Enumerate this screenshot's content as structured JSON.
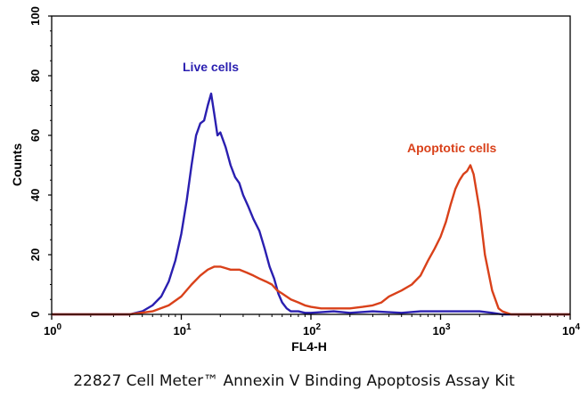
{
  "caption": "22827 Cell Meter™ Annexin V Binding Apoptosis Assay Kit",
  "colors": {
    "live": "#2a1fb0",
    "apoptotic": "#d9411a",
    "axis": "#000000"
  },
  "chart_data": {
    "type": "line",
    "xlabel": "FL4-H",
    "ylabel": "Counts",
    "xscale": "log",
    "xlim": [
      1,
      10000
    ],
    "ylim": [
      0,
      100
    ],
    "x_ticks": [
      {
        "base": "10",
        "exp": "0"
      },
      {
        "base": "10",
        "exp": "1"
      },
      {
        "base": "10",
        "exp": "2"
      },
      {
        "base": "10",
        "exp": "3"
      },
      {
        "base": "10",
        "exp": "4"
      }
    ],
    "y_ticks": [
      "0",
      "20",
      "40",
      "60",
      "80",
      "100"
    ],
    "annotations": [
      "Live cells",
      "Apoptotic cells"
    ],
    "series": [
      {
        "key": "live",
        "x": [
          1,
          4,
          5,
          6,
          7,
          8,
          9,
          10,
          11,
          12,
          13,
          14,
          15,
          16,
          17,
          18,
          19,
          20,
          22,
          24,
          26,
          28,
          30,
          33,
          36,
          40,
          44,
          48,
          52,
          56,
          60,
          65,
          70,
          80,
          90,
          100,
          150,
          200,
          300,
          500,
          700,
          1000,
          1500,
          2000,
          2500,
          3000,
          10000
        ],
        "y": [
          0,
          0,
          1,
          3,
          6,
          11,
          18,
          27,
          38,
          50,
          60,
          64,
          65,
          70,
          74,
          67,
          60,
          61,
          56,
          50,
          46,
          44,
          40,
          36,
          32,
          28,
          22,
          16,
          12,
          7,
          4,
          2,
          1,
          1,
          0.5,
          0.5,
          1,
          0.5,
          1,
          0.5,
          1,
          1,
          1,
          1,
          0.5,
          0,
          0
        ]
      },
      {
        "key": "apoptotic",
        "x": [
          1,
          4,
          6,
          8,
          10,
          12,
          14,
          16,
          18,
          20,
          24,
          28,
          32,
          36,
          40,
          45,
          50,
          55,
          60,
          70,
          80,
          90,
          100,
          120,
          150,
          200,
          250,
          300,
          350,
          400,
          500,
          600,
          700,
          800,
          900,
          1000,
          1100,
          1200,
          1300,
          1400,
          1500,
          1600,
          1700,
          1800,
          2000,
          2200,
          2500,
          2800,
          3000,
          3500,
          10000
        ],
        "y": [
          0,
          0,
          1,
          3,
          6,
          10,
          13,
          15,
          16,
          16,
          15,
          15,
          14,
          13,
          12,
          11,
          10,
          8,
          7,
          5,
          4,
          3,
          2.5,
          2,
          2,
          2,
          2.5,
          3,
          4,
          6,
          8,
          10,
          13,
          18,
          22,
          26,
          31,
          37,
          42,
          45,
          47,
          48,
          50,
          47,
          35,
          20,
          8,
          2,
          1,
          0,
          0
        ]
      }
    ]
  }
}
